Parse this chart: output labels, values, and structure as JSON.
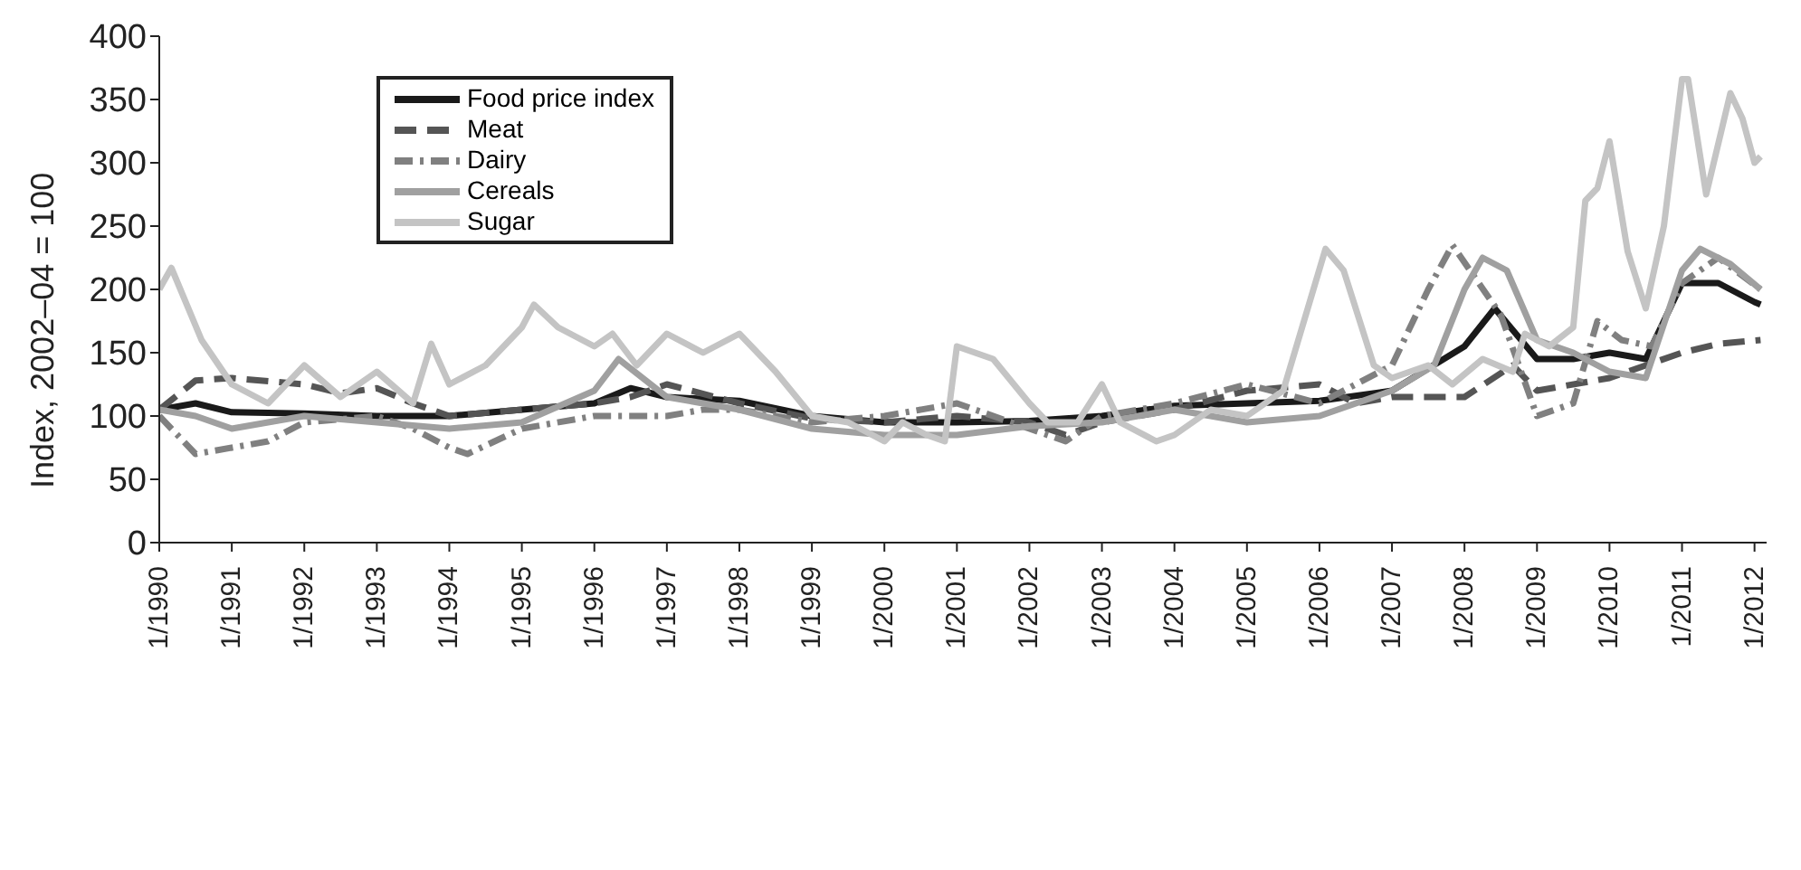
{
  "chart_data": {
    "type": "line",
    "ylabel": "Index, 2002–04 = 100",
    "ylim": [
      0,
      400
    ],
    "yticks": [
      0,
      50,
      100,
      150,
      200,
      250,
      300,
      350,
      400
    ],
    "xlim": [
      "1990-01",
      "2012-03"
    ],
    "xticks": [
      {
        "value": "1990-01",
        "label": "1/1990"
      },
      {
        "value": "1991-01",
        "label": "1/1991"
      },
      {
        "value": "1992-01",
        "label": "1/1992"
      },
      {
        "value": "1993-01",
        "label": "1/1993"
      },
      {
        "value": "1994-01",
        "label": "1/1994"
      },
      {
        "value": "1995-01",
        "label": "1/1995"
      },
      {
        "value": "1996-01",
        "label": "1/1996"
      },
      {
        "value": "1997-01",
        "label": "1/1997"
      },
      {
        "value": "1998-01",
        "label": "1/1998"
      },
      {
        "value": "1999-01",
        "label": "1/1999"
      },
      {
        "value": "2000-01",
        "label": "1/2000"
      },
      {
        "value": "2001-01",
        "label": "1/2001"
      },
      {
        "value": "2002-01",
        "label": "1/2002"
      },
      {
        "value": "2003-01",
        "label": "1/2003"
      },
      {
        "value": "2004-01",
        "label": "1/2004"
      },
      {
        "value": "2005-01",
        "label": "1/2005"
      },
      {
        "value": "2006-01",
        "label": "1/2006"
      },
      {
        "value": "2007-01",
        "label": "1/2007"
      },
      {
        "value": "2008-01",
        "label": "1/2008"
      },
      {
        "value": "2009-01",
        "label": "1/2009"
      },
      {
        "value": "2010-01",
        "label": "1/2010"
      },
      {
        "value": "2011-01",
        "label": "1/2011"
      },
      {
        "value": "2012-01",
        "label": "1/2012"
      }
    ],
    "legend": "top left",
    "marker": "none",
    "series": [
      {
        "name": "Food price index",
        "color": "#1a1a1a",
        "line_style": "solid",
        "x": [
          "1990-01",
          "1990-07",
          "1991-01",
          "1992-01",
          "1993-01",
          "1994-01",
          "1995-01",
          "1996-01",
          "1996-07",
          "1997-01",
          "1998-01",
          "1999-01",
          "2000-01",
          "2001-01",
          "2002-01",
          "2003-01",
          "2004-01",
          "2005-01",
          "2006-01",
          "2007-01",
          "2008-01",
          "2008-06",
          "2009-01",
          "2009-07",
          "2010-01",
          "2010-07",
          "2011-01",
          "2011-07",
          "2012-01",
          "2012-02"
        ],
        "values": [
          105,
          110,
          103,
          102,
          100,
          100,
          105,
          110,
          122,
          115,
          112,
          100,
          95,
          95,
          96,
          100,
          108,
          110,
          112,
          120,
          155,
          185,
          145,
          145,
          150,
          145,
          205,
          205,
          190,
          188
        ]
      },
      {
        "name": "Meat",
        "color": "#555555",
        "line_style": "dashed",
        "x": [
          "1990-01",
          "1990-07",
          "1991-01",
          "1992-01",
          "1992-07",
          "1993-01",
          "1993-07",
          "1994-01",
          "1995-01",
          "1996-01",
          "1996-07",
          "1997-01",
          "1998-01",
          "1999-01",
          "2000-01",
          "2001-01",
          "2002-01",
          "2002-07",
          "2003-01",
          "2004-01",
          "2005-01",
          "2006-01",
          "2006-07",
          "2007-01",
          "2008-01",
          "2008-09",
          "2009-01",
          "2010-01",
          "2010-07",
          "2011-01",
          "2011-07",
          "2012-02"
        ],
        "values": [
          105,
          128,
          130,
          125,
          118,
          122,
          110,
          100,
          105,
          110,
          115,
          125,
          110,
          98,
          95,
          100,
          95,
          85,
          95,
          105,
          120,
          125,
          110,
          115,
          115,
          140,
          120,
          130,
          140,
          150,
          157,
          160
        ]
      },
      {
        "name": "Dairy",
        "color": "#808080",
        "line_style": "dotted",
        "x": [
          "1990-01",
          "1990-07",
          "1991-01",
          "1991-07",
          "1992-01",
          "1993-01",
          "1993-07",
          "1994-01",
          "1994-04",
          "1995-01",
          "1996-01",
          "1997-01",
          "1997-07",
          "1998-01",
          "1999-01",
          "2000-01",
          "2001-01",
          "2002-01",
          "2002-07",
          "2003-01",
          "2004-01",
          "2005-01",
          "2006-01",
          "2007-01",
          "2007-07",
          "2007-11",
          "2008-07",
          "2009-01",
          "2009-07",
          "2009-11",
          "2010-03",
          "2010-08",
          "2011-01",
          "2011-07",
          "2012-02"
        ],
        "values": [
          100,
          70,
          75,
          80,
          95,
          100,
          90,
          75,
          70,
          90,
          100,
          100,
          105,
          105,
          95,
          100,
          110,
          90,
          80,
          100,
          110,
          125,
          110,
          140,
          200,
          235,
          180,
          100,
          110,
          175,
          160,
          155,
          205,
          225,
          200
        ]
      },
      {
        "name": "Cereals",
        "color": "#a0a0a0",
        "line_style": "solid",
        "x": [
          "1990-01",
          "1990-07",
          "1991-01",
          "1992-01",
          "1993-01",
          "1994-01",
          "1995-01",
          "1996-01",
          "1996-05",
          "1997-01",
          "1998-01",
          "1999-01",
          "2000-01",
          "2001-01",
          "2002-01",
          "2003-01",
          "2004-01",
          "2005-01",
          "2006-01",
          "2007-01",
          "2007-08",
          "2008-01",
          "2008-04",
          "2008-08",
          "2009-01",
          "2009-07",
          "2010-01",
          "2010-07",
          "2011-01",
          "2011-04",
          "2011-09",
          "2012-02"
        ],
        "values": [
          105,
          100,
          90,
          100,
          95,
          90,
          95,
          120,
          145,
          115,
          105,
          90,
          85,
          85,
          92,
          95,
          105,
          95,
          100,
          120,
          140,
          200,
          225,
          215,
          160,
          150,
          135,
          130,
          215,
          232,
          220,
          200
        ]
      },
      {
        "name": "Sugar",
        "color": "#c4c4c4",
        "line_style": "solid",
        "x": [
          "1990-01",
          "1990-03",
          "1990-08",
          "1991-01",
          "1991-07",
          "1992-01",
          "1992-07",
          "1993-01",
          "1993-07",
          "1993-10",
          "1994-01",
          "1994-07",
          "1995-01",
          "1995-03",
          "1995-07",
          "1996-01",
          "1996-04",
          "1996-08",
          "1997-01",
          "1997-07",
          "1998-01",
          "1998-07",
          "1999-01",
          "1999-07",
          "2000-01",
          "2000-04",
          "2000-08",
          "2000-11",
          "2001-01",
          "2001-07",
          "2002-01",
          "2002-04",
          "2002-09",
          "2003-01",
          "2003-04",
          "2003-10",
          "2004-01",
          "2004-07",
          "2005-01",
          "2005-07",
          "2006-02",
          "2006-05",
          "2006-10",
          "2007-01",
          "2007-07",
          "2007-11",
          "2008-04",
          "2008-09",
          "2008-11",
          "2009-03",
          "2009-07",
          "2009-09",
          "2009-11",
          "2010-01",
          "2010-04",
          "2010-07",
          "2010-10",
          "2011-01",
          "2011-02",
          "2011-05",
          "2011-09",
          "2011-11",
          "2012-01",
          "2012-02"
        ],
        "values": [
          200,
          217,
          160,
          125,
          110,
          140,
          115,
          135,
          110,
          157,
          125,
          140,
          170,
          188,
          170,
          155,
          165,
          140,
          165,
          150,
          165,
          135,
          100,
          95,
          80,
          95,
          85,
          80,
          155,
          145,
          110,
          95,
          95,
          125,
          95,
          80,
          85,
          105,
          100,
          120,
          232,
          215,
          140,
          130,
          140,
          125,
          145,
          135,
          165,
          155,
          170,
          270,
          280,
          317,
          230,
          185,
          250,
          366,
          366,
          275,
          355,
          335,
          300,
          305
        ]
      }
    ]
  }
}
